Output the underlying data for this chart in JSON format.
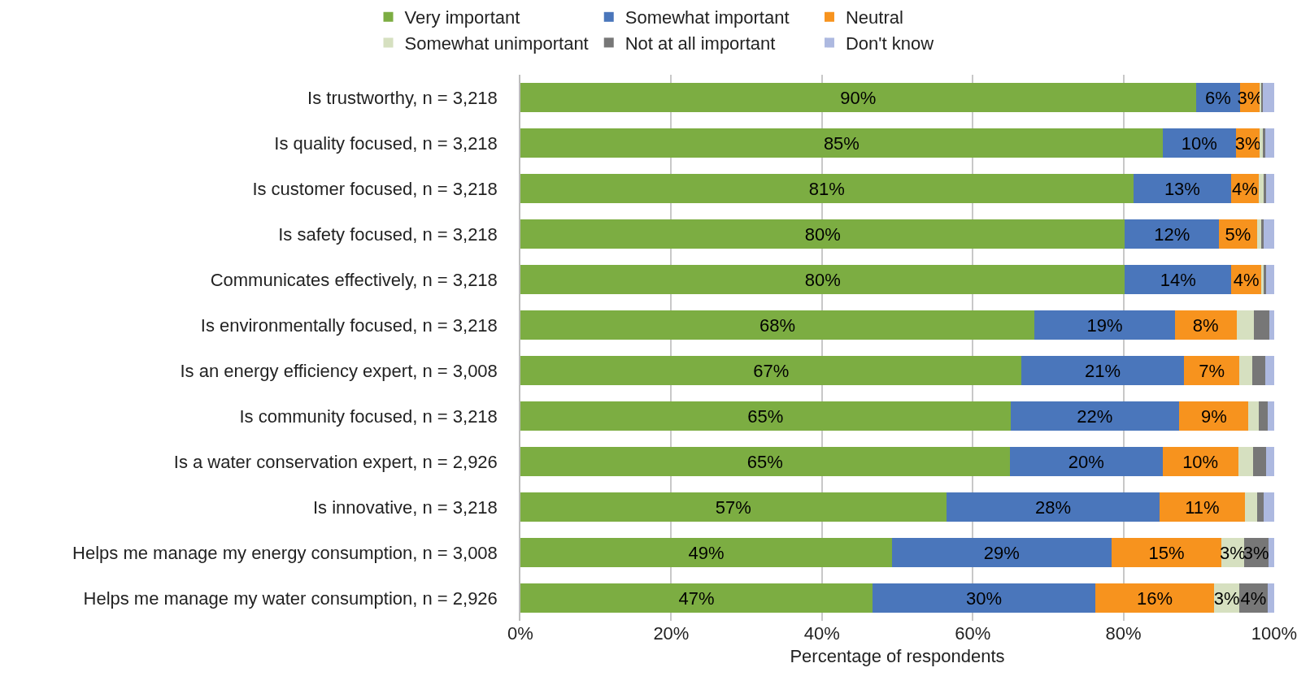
{
  "chart_data": {
    "type": "bar",
    "orientation": "horizontal",
    "stacked": true,
    "xlabel": "Percentage of respondents",
    "categories": [
      "Is trustworthy, n = 3,218",
      "Is quality focused, n = 3,218",
      "Is customer focused, n = 3,218",
      "Is safety focused, n = 3,218",
      "Communicates effectively, n = 3,218",
      "Is environmentally focused, n = 3,218",
      "Is an energy efficiency expert, n = 3,008",
      "Is community focused, n = 3,218",
      "Is a water conservation expert, n = 2,926",
      "Is innovative, n = 3,218",
      "Helps me manage my energy consumption, n = 3,008",
      "Helps me manage my water consumption, n = 2,926"
    ],
    "series": [
      {
        "name": "Very important",
        "color": "#7cad42",
        "values": [
          89.6,
          85.2,
          81.3,
          80.2,
          80.2,
          68.2,
          66.5,
          65.0,
          64.9,
          56.5,
          49.3,
          46.7
        ],
        "value_labels": [
          "90%",
          "85%",
          "81%",
          "80%",
          "80%",
          "68%",
          "67%",
          "65%",
          "65%",
          "57%",
          "49%",
          "47%"
        ]
      },
      {
        "name": "Somewhat important",
        "color": "#4a76bb",
        "values": [
          5.9,
          9.7,
          13.0,
          12.5,
          14.1,
          18.6,
          21.5,
          22.4,
          20.3,
          28.3,
          29.1,
          29.6
        ],
        "value_labels": [
          "6%",
          "10%",
          "13%",
          "12%",
          "14%",
          "19%",
          "21%",
          "22%",
          "20%",
          "28%",
          "29%",
          "30%"
        ]
      },
      {
        "name": "Neutral",
        "color": "#f7931e",
        "values": [
          2.6,
          3.2,
          3.6,
          5.0,
          4.0,
          8.2,
          7.4,
          9.2,
          10.0,
          11.3,
          14.6,
          15.7
        ],
        "value_labels": [
          "3%",
          "3%",
          "4%",
          "5%",
          "4%",
          "8%",
          "7%",
          "9%",
          "10%",
          "11%",
          "15%",
          "16%"
        ]
      },
      {
        "name": "Somewhat unimportant",
        "color": "#d6e0c0",
        "values": [
          0.2,
          0.4,
          0.7,
          0.6,
          0.4,
          2.3,
          1.7,
          1.3,
          2.0,
          1.6,
          3.0,
          3.4
        ],
        "value_labels": [
          null,
          null,
          null,
          null,
          null,
          null,
          null,
          null,
          null,
          null,
          "3%",
          "3%"
        ]
      },
      {
        "name": "Not at all important",
        "color": "#777777",
        "values": [
          0.2,
          0.3,
          0.3,
          0.3,
          0.2,
          2.1,
          1.7,
          1.2,
          1.7,
          0.9,
          3.2,
          3.7
        ],
        "value_labels": [
          null,
          null,
          null,
          null,
          null,
          null,
          null,
          null,
          null,
          null,
          "3%",
          "4%"
        ]
      },
      {
        "name": "Don't know",
        "color": "#adb9e0",
        "values": [
          1.5,
          1.2,
          1.1,
          1.4,
          1.1,
          0.6,
          1.2,
          0.9,
          1.1,
          1.4,
          0.8,
          0.9
        ],
        "value_labels": [
          null,
          null,
          null,
          null,
          null,
          null,
          null,
          null,
          null,
          null,
          null,
          null
        ]
      }
    ],
    "xlim": [
      0,
      100
    ],
    "xticks": [
      {
        "value": 0,
        "label": "0%"
      },
      {
        "value": 20,
        "label": "20%"
      },
      {
        "value": 40,
        "label": "40%"
      },
      {
        "value": 60,
        "label": "60%"
      },
      {
        "value": 80,
        "label": "80%"
      },
      {
        "value": 100,
        "label": "100%"
      }
    ],
    "grid": "x",
    "legend": "top"
  }
}
